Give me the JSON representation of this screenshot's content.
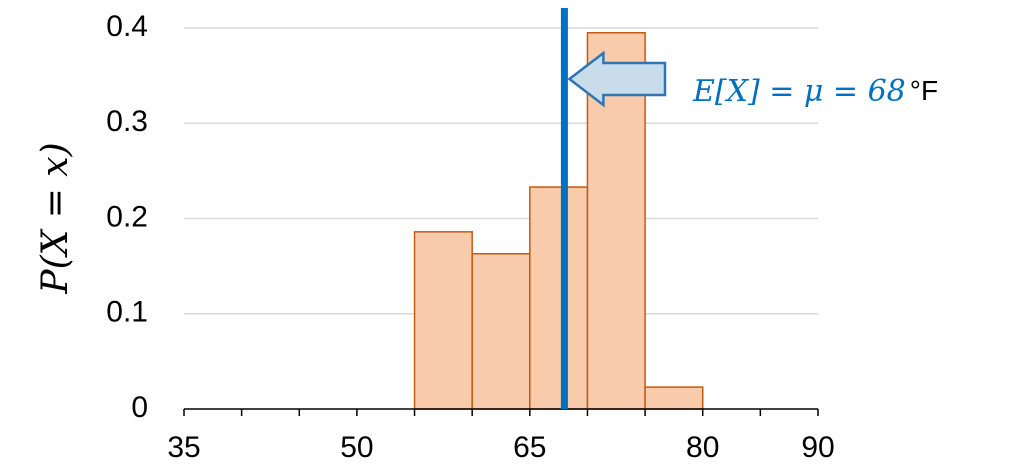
{
  "chart_data": {
    "type": "bar",
    "title": "",
    "xlabel": "",
    "ylabel": "P(X = x)",
    "bins": [
      {
        "x0": 55,
        "x1": 60,
        "value": 0.186
      },
      {
        "x0": 60,
        "x1": 65,
        "value": 0.163
      },
      {
        "x0": 65,
        "x1": 70,
        "value": 0.233
      },
      {
        "x0": 70,
        "x1": 75,
        "value": 0.395
      },
      {
        "x0": 75,
        "x1": 80,
        "value": 0.023
      }
    ],
    "xlim": [
      35,
      90
    ],
    "ylim": [
      0,
      0.4
    ],
    "x_ticks": [
      35,
      50,
      65,
      80,
      90
    ],
    "x_minor_ticks": [
      40,
      45,
      55,
      60,
      70,
      75,
      85
    ],
    "y_ticks": [
      {
        "value": 0,
        "label": "0"
      },
      {
        "value": 0.1,
        "label": "0.1"
      },
      {
        "value": 0.2,
        "label": "0.2"
      },
      {
        "value": 0.3,
        "label": "0.3"
      },
      {
        "value": 0.4,
        "label": "0.4"
      }
    ],
    "grid": "horizontal",
    "mean_line": {
      "x": 68
    },
    "annotation": {
      "math": "E[X] = μ = 68",
      "unit": "°F"
    },
    "colors": {
      "bar_fill": "#f8cbad",
      "bar_stroke": "#c55a11",
      "mean_line": "#0070c0",
      "annotation_text": "#0070c0",
      "arrow_fill": "#c9dcea",
      "arrow_stroke": "#2e75b6",
      "grid": "#d9d9d9",
      "axis": "#000000"
    }
  }
}
